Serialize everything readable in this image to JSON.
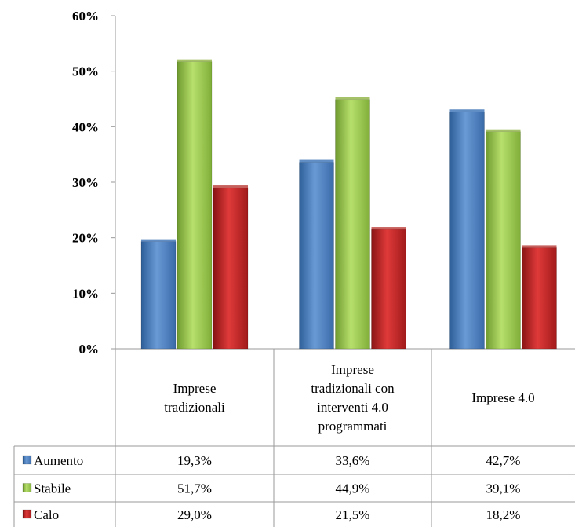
{
  "chart_data": {
    "type": "bar",
    "categories": [
      [
        "Imprese",
        "tradizionali"
      ],
      [
        "Imprese",
        "tradizionali con",
        "interventi 4.0",
        "programmati"
      ],
      [
        "Imprese 4.0"
      ]
    ],
    "series": [
      {
        "name": "Aumento",
        "values": [
          19.3,
          33.6,
          42.7
        ],
        "labels": [
          "19,3%",
          "33,6%",
          "42,7%"
        ],
        "color": "#4f81bd"
      },
      {
        "name": "Stabile",
        "values": [
          51.7,
          44.9,
          39.1
        ],
        "labels": [
          "51,7%",
          "44,9%",
          "39,1%"
        ],
        "color": "#9bbb59"
      },
      {
        "name": "Calo",
        "values": [
          29.0,
          21.5,
          18.2
        ],
        "labels": [
          "29,0%",
          "21,5%",
          "18,2%"
        ],
        "color": "#c0504d"
      }
    ],
    "y_ticks": [
      "0%",
      "10%",
      "20%",
      "30%",
      "40%",
      "50%",
      "60%"
    ],
    "ylim": [
      0,
      60
    ],
    "grid": false,
    "legend": "data-table-left",
    "title": "",
    "xlabel": "",
    "ylabel": ""
  }
}
